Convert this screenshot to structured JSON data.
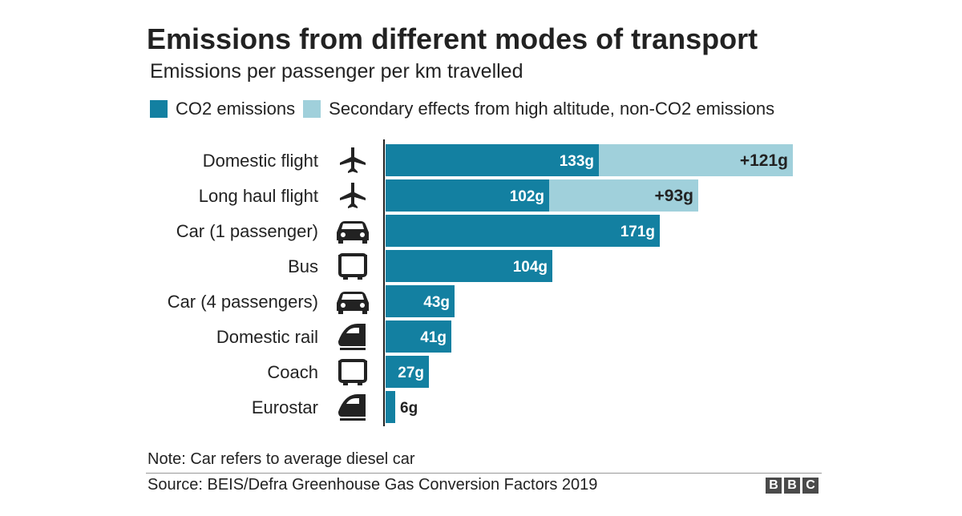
{
  "colors": {
    "co2": "#1380A1",
    "secondary": "#A0D0DB",
    "text": "#222222",
    "label_light": "#ffffff"
  },
  "chart_data": {
    "type": "bar",
    "orientation": "horizontal",
    "stacked": true,
    "title": "Emissions from different modes of transport",
    "subtitle": "Emissions per passenger per km travelled",
    "unit": "g",
    "categories": [
      "Domestic flight",
      "Long haul flight",
      "Car (1 passenger)",
      "Bus",
      "Car (4 passengers)",
      "Domestic rail",
      "Coach",
      "Eurostar"
    ],
    "icons": [
      "plane-icon",
      "plane-icon",
      "car-icon",
      "bus-icon",
      "car-icon",
      "train-icon",
      "bus-icon",
      "train-icon"
    ],
    "series": [
      {
        "name": "CO2 emissions",
        "key": "co2",
        "values": [
          133,
          102,
          171,
          104,
          43,
          41,
          27,
          6
        ],
        "labels": [
          "133g",
          "102g",
          "171g",
          "104g",
          "43g",
          "41g",
          "27g",
          "6g"
        ]
      },
      {
        "name": "Secondary effects from high altitude, non-CO2 emissions",
        "key": "secondary",
        "values": [
          121,
          93,
          null,
          null,
          null,
          null,
          null,
          null
        ],
        "labels": [
          "+121g",
          "+93g",
          null,
          null,
          null,
          null,
          null,
          null
        ]
      }
    ],
    "xlim": [
      0,
      254
    ],
    "note": "Note: Car refers to average diesel car",
    "source": "Source: BEIS/Defra Greenhouse Gas Conversion Factors 2019"
  },
  "logo": {
    "letters": [
      "B",
      "B",
      "C"
    ]
  }
}
